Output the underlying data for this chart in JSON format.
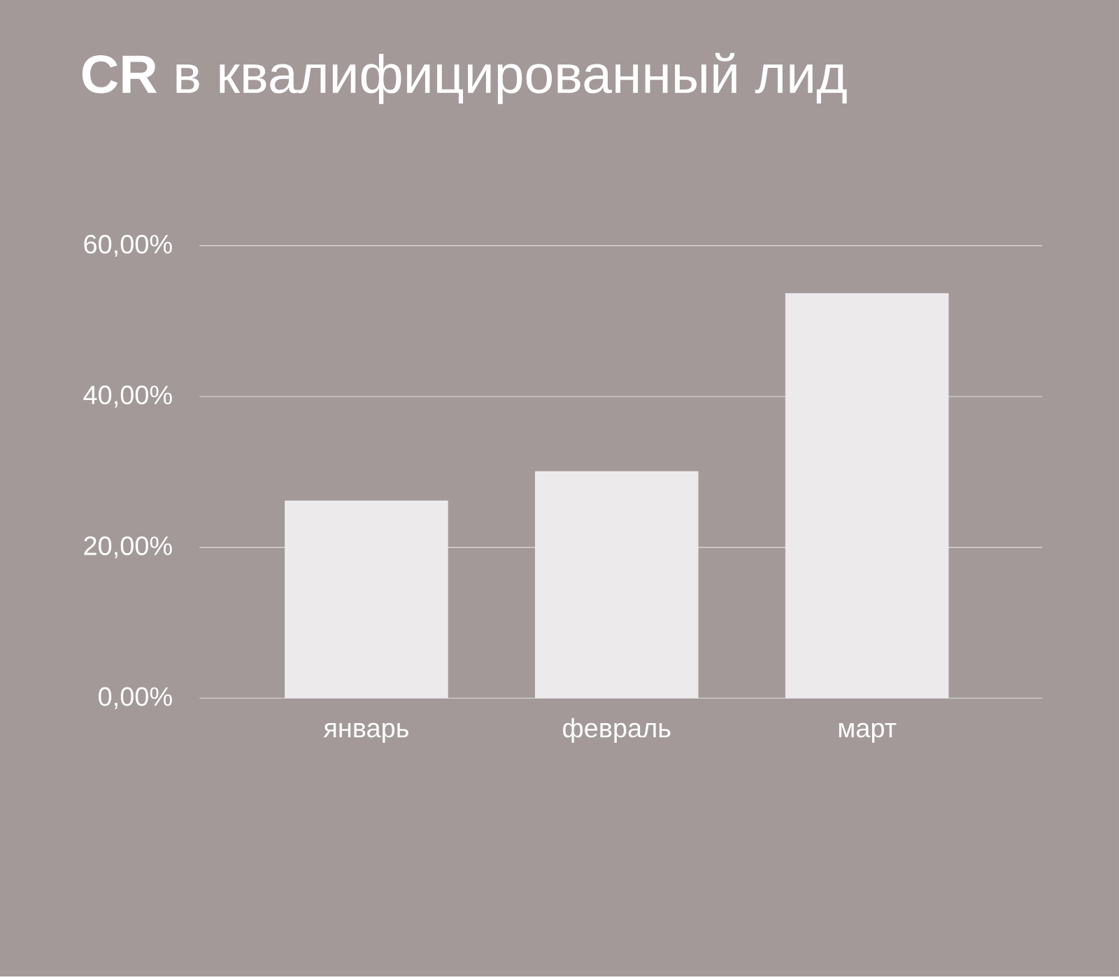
{
  "chart_data": {
    "type": "bar",
    "title": "**CR** в квалифицированный лид",
    "categories": [
      "январь",
      "февраль",
      "март"
    ],
    "values": [
      26.2,
      30.1,
      53.7
    ],
    "color": "#edeaeb",
    "ylim": [
      0,
      60
    ],
    "yticks": [
      {
        "value": 0,
        "label": "0,00%"
      },
      {
        "value": 20,
        "label": "20,00%"
      },
      {
        "value": 40,
        "label": "40,00%"
      },
      {
        "value": 60,
        "label": "60,00%"
      }
    ],
    "grid": "y"
  }
}
